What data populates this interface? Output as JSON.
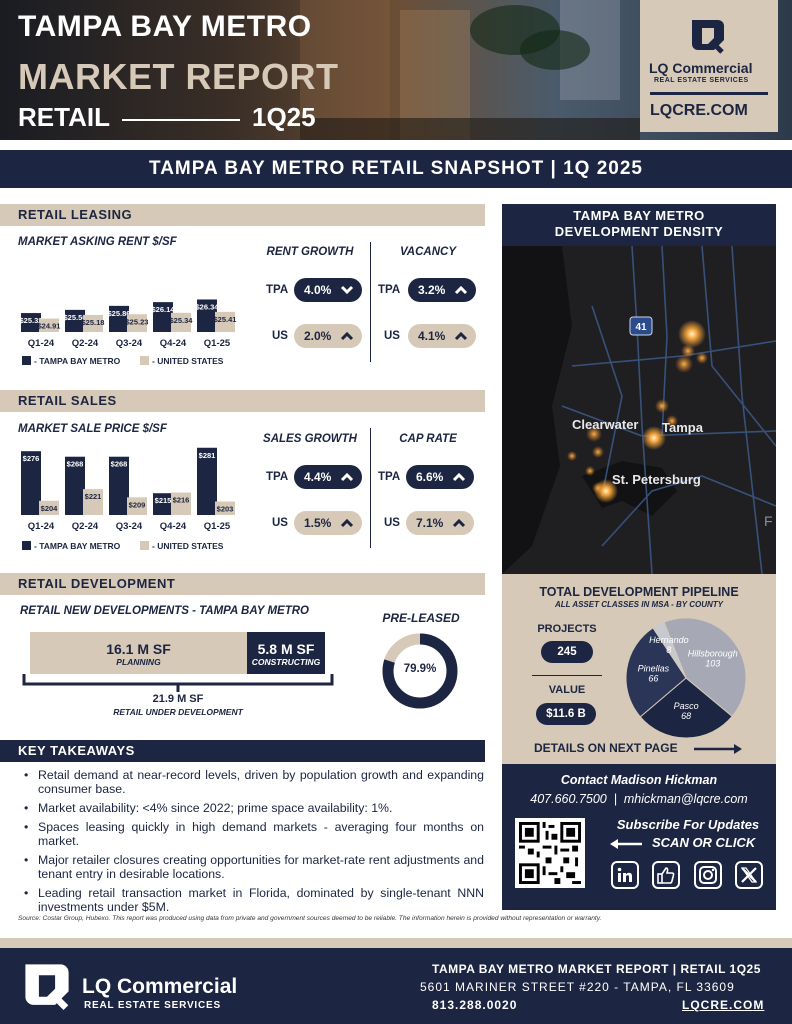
{
  "header": {
    "title_line1": "TAMPA BAY METRO",
    "title_line2": "MARKET REPORT",
    "sector": "RETAIL",
    "quarter": "1Q25",
    "logo_name": "LQ Commercial",
    "logo_sub": "REAL ESTATE SERVICES",
    "website": "LQCRE.COM"
  },
  "snapshot_title": "TAMPA BAY METRO RETAIL SNAPSHOT  |  1Q 2025",
  "leasing": {
    "section": "RETAIL LEASING",
    "chart_title": "MARKET ASKING RENT $/SF",
    "rent_growth_label": "RENT GROWTH",
    "vacancy_label": "VACANCY",
    "tpa_label": "TPA",
    "us_label": "US",
    "rent_growth_tpa": "4.0%",
    "rent_growth_us": "2.0%",
    "vacancy_tpa": "3.2%",
    "vacancy_us": "4.1%"
  },
  "sales": {
    "section": "RETAIL SALES",
    "chart_title": "MARKET SALE PRICE $/SF",
    "sales_growth_label": "SALES GROWTH",
    "cap_rate_label": "CAP RATE",
    "tpa_label": "TPA",
    "us_label": "US",
    "sales_growth_tpa": "4.4%",
    "sales_growth_us": "1.5%",
    "cap_rate_tpa": "6.6%",
    "cap_rate_us": "7.1%"
  },
  "legend": {
    "tampa": "- TAMPA BAY METRO",
    "us": "- UNITED STATES"
  },
  "development": {
    "section": "RETAIL DEVELOPMENT",
    "subtitle": "RETAIL NEW DEVELOPMENTS - TAMPA BAY METRO",
    "planning_value": "16.1 M SF",
    "planning_label": "PLANNING",
    "constructing_value": "5.8 M SF",
    "constructing_label": "CONSTRUCTING",
    "total_value": "21.9 M SF",
    "total_label": "RETAIL UNDER DEVELOPMENT",
    "preleased_label": "PRE-LEASED",
    "preleased_value": "79.9%",
    "preleased_fraction": 0.799
  },
  "takeaways": {
    "title": "KEY TAKEAWAYS",
    "items": [
      "Retail demand at near-record levels, driven by population growth and expanding consumer base.",
      "Market availability: <4% since 2022; prime space availability: 1%.",
      "Spaces leasing quickly in high demand markets - averaging four months on market.",
      "Major retailer closures creating opportunities for market-rate rent adjustments and tenant entry in desirable locations.",
      "Leading retail transaction market in Florida, dominated by single-tenant NNN investments under $5M."
    ]
  },
  "source": "Source: Costar Group, Hubexo. This report was produced using data from private and government sources deemed to be reliable. The information herein is provided without representation or warranty.",
  "map": {
    "title_line1": "TAMPA BAY METRO",
    "title_line2": "DEVELOPMENT DENSITY",
    "labels": [
      "Clearwater",
      "Tampa",
      "St. Petersburg"
    ],
    "shield": "41",
    "edge_letter": "F"
  },
  "pipeline": {
    "title": "TOTAL DEVELOPMENT PIPELINE",
    "subtitle": "ALL ASSET CLASSES IN MSA - BY COUNTY",
    "projects_label": "PROJECTS",
    "projects_value": "245",
    "value_label": "VALUE",
    "value_value": "$11.6 B",
    "details": "DETAILS ON NEXT PAGE",
    "counties": [
      {
        "name": "Hillsborough",
        "value": 103,
        "color": "#a6a9b5"
      },
      {
        "name": "Pasco",
        "value": 68,
        "color": "#1c2541"
      },
      {
        "name": "Pinellas",
        "value": 66,
        "color": "#2a3557"
      },
      {
        "name": "Hernando",
        "value": 8,
        "color": "#c7c9d1"
      }
    ]
  },
  "contact": {
    "heading": "Contact Madison Hickman",
    "phone": "407.660.7500",
    "separator": "|",
    "email": "mhickman@lqcre.com",
    "subscribe": "Subscribe For Updates",
    "scan": "SCAN OR CLICK"
  },
  "footer": {
    "logo_name": "LQ Commercial",
    "logo_sub": "REAL ESTATE SERVICES",
    "report": "TAMPA BAY METRO MARKET REPORT  |  RETAIL 1Q25",
    "address": "5601 MARINER STREET #220 - TAMPA, FL 33609",
    "phone": "813.288.0020",
    "website": "LQCRE.COM"
  },
  "colors": {
    "navy": "#1c2541",
    "beige": "#d6c9b7"
  },
  "chart_data": [
    {
      "type": "bar",
      "title": "MARKET ASKING RENT $/SF",
      "categories": [
        "Q1-24",
        "Q2-24",
        "Q3-24",
        "Q4-24",
        "Q1-25"
      ],
      "series": [
        {
          "name": "TAMPA BAY METRO",
          "values": [
            25.32,
            25.56,
            25.86,
            26.14,
            26.34
          ],
          "labels": [
            "$25.32",
            "$25.56",
            "$25.86",
            "$26.14",
            "$26.34"
          ]
        },
        {
          "name": "UNITED STATES",
          "values": [
            24.91,
            25.18,
            25.23,
            25.34,
            25.41
          ],
          "labels": [
            "$24.91",
            "$25.18",
            "$25.23",
            "$25.34",
            "$25.41"
          ]
        }
      ]
    },
    {
      "type": "bar",
      "title": "MARKET SALE PRICE $/SF",
      "categories": [
        "Q1-24",
        "Q2-24",
        "Q3-24",
        "Q4-24",
        "Q1-25"
      ],
      "series": [
        {
          "name": "TAMPA BAY METRO",
          "values": [
            276,
            268,
            268,
            215,
            281
          ],
          "labels": [
            "$276",
            "$268",
            "$268",
            "$215",
            "$281"
          ]
        },
        {
          "name": "UNITED STATES",
          "values": [
            204,
            221,
            209,
            216,
            203
          ],
          "labels": [
            "$204",
            "$221",
            "$209",
            "$216",
            "$203"
          ]
        }
      ]
    },
    {
      "type": "pie",
      "title": "TOTAL DEVELOPMENT PIPELINE",
      "categories": [
        "Hillsborough",
        "Pasco",
        "Pinellas",
        "Hernando"
      ],
      "values": [
        103,
        68,
        66,
        8
      ]
    }
  ]
}
